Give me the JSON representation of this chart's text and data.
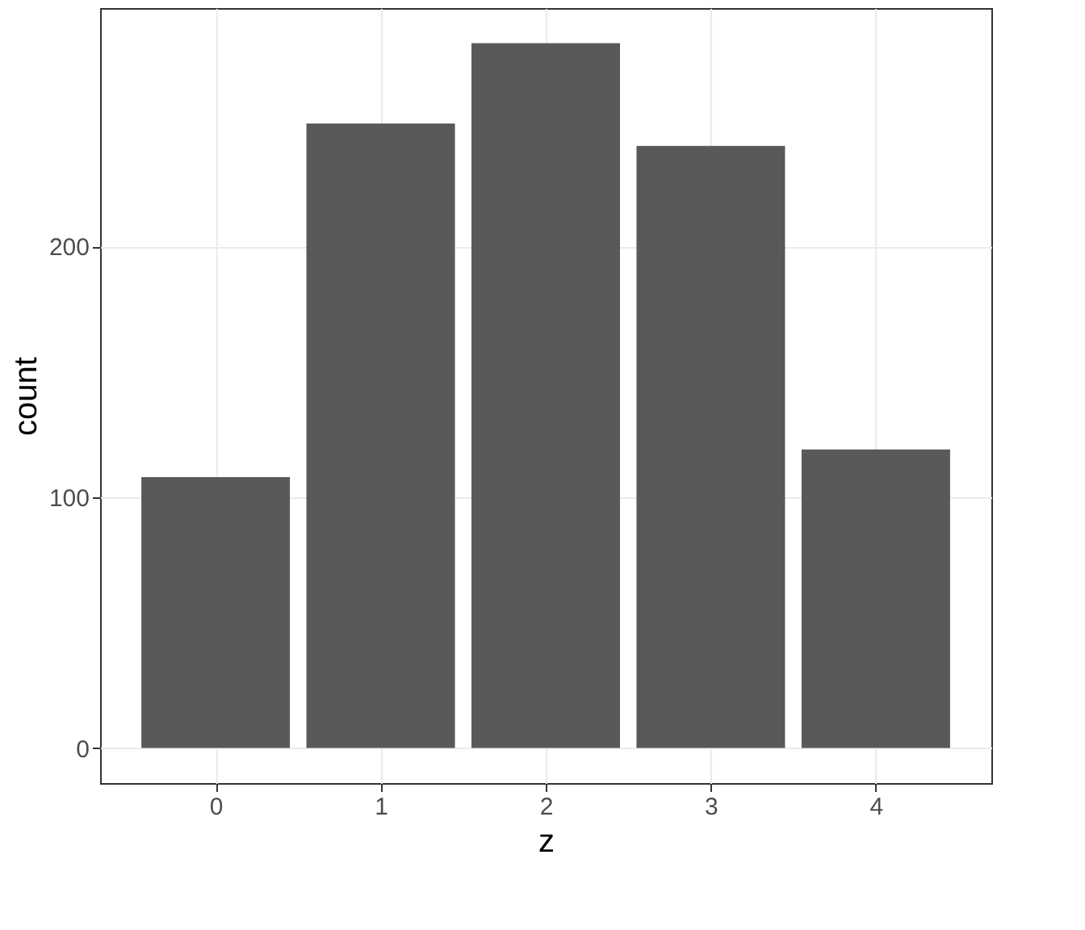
{
  "chart_data": {
    "type": "bar",
    "xlabel": "z",
    "ylabel": "count",
    "x": [
      0,
      1,
      2,
      3,
      4
    ],
    "values": [
      108,
      249,
      281,
      240,
      119
    ],
    "color": "#595959",
    "xlim": [
      -0.7,
      4.7
    ],
    "xticks": [
      0,
      1,
      2,
      3,
      4
    ],
    "ylim": [
      -14,
      295
    ],
    "yticks": [
      0,
      100,
      200
    ],
    "grid": true
  }
}
